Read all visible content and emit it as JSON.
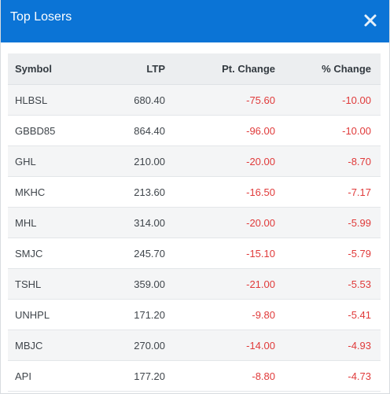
{
  "modal": {
    "title": "Top Losers",
    "close_icon": "close-icon"
  },
  "table": {
    "headers": {
      "symbol": "Symbol",
      "ltp": "LTP",
      "pt_change": "Pt. Change",
      "pct_change": "% Change"
    },
    "rows": [
      {
        "symbol": "HLBSL",
        "ltp": "680.40",
        "pt_change": "-75.60",
        "pct_change": "-10.00"
      },
      {
        "symbol": "GBBD85",
        "ltp": "864.40",
        "pt_change": "-96.00",
        "pct_change": "-10.00"
      },
      {
        "symbol": "GHL",
        "ltp": "210.00",
        "pt_change": "-20.00",
        "pct_change": "-8.70"
      },
      {
        "symbol": "MKHC",
        "ltp": "213.60",
        "pt_change": "-16.50",
        "pct_change": "-7.17"
      },
      {
        "symbol": "MHL",
        "ltp": "314.00",
        "pt_change": "-20.00",
        "pct_change": "-5.99"
      },
      {
        "symbol": "SMJC",
        "ltp": "245.70",
        "pt_change": "-15.10",
        "pct_change": "-5.79"
      },
      {
        "symbol": "TSHL",
        "ltp": "359.00",
        "pt_change": "-21.00",
        "pct_change": "-5.53"
      },
      {
        "symbol": "UNHPL",
        "ltp": "171.20",
        "pt_change": "-9.80",
        "pct_change": "-5.41"
      },
      {
        "symbol": "MBJC",
        "ltp": "270.00",
        "pt_change": "-14.00",
        "pct_change": "-4.93"
      },
      {
        "symbol": "API",
        "ltp": "177.20",
        "pt_change": "-8.80",
        "pct_change": "-4.73"
      }
    ]
  },
  "colors": {
    "header_bg": "#0b74d6",
    "negative": "#e03a3a"
  }
}
